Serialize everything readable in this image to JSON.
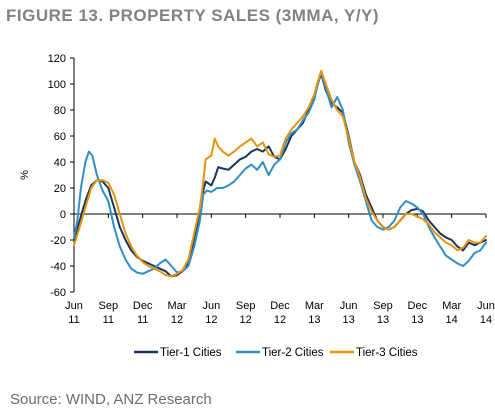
{
  "title": "FIGURE 13. PROPERTY SALES (3MMA, Y/Y)",
  "source": "Source: WIND, ANZ Research",
  "chart_data": {
    "type": "line",
    "ylabel": "%",
    "ylim": [
      -60,
      120
    ],
    "yticks": [
      -60,
      -40,
      -20,
      0,
      20,
      40,
      60,
      80,
      100,
      120
    ],
    "xlim": [
      0,
      36
    ],
    "xticks": [
      {
        "m": 0,
        "top": "Jun",
        "bottom": "11"
      },
      {
        "m": 3,
        "top": "Sep",
        "bottom": "11"
      },
      {
        "m": 6,
        "top": "Dec",
        "bottom": "11"
      },
      {
        "m": 9,
        "top": "Mar",
        "bottom": "12"
      },
      {
        "m": 12,
        "top": "Jun",
        "bottom": "12"
      },
      {
        "m": 15,
        "top": "Sep",
        "bottom": "12"
      },
      {
        "m": 18,
        "top": "Dec",
        "bottom": "12"
      },
      {
        "m": 21,
        "top": "Mar",
        "bottom": "13"
      },
      {
        "m": 24,
        "top": "Jun",
        "bottom": "13"
      },
      {
        "m": 27,
        "top": "Sep",
        "bottom": "13"
      },
      {
        "m": 30,
        "top": "Dec",
        "bottom": "13"
      },
      {
        "m": 33,
        "top": "Mar",
        "bottom": "14"
      },
      {
        "m": 36,
        "top": "Jun",
        "bottom": "14"
      }
    ],
    "legend_position": "bottom",
    "series": [
      {
        "name": "Tier-1 Cities",
        "color": "#17365d",
        "points": [
          [
            0,
            -20
          ],
          [
            0.5,
            -5
          ],
          [
            1,
            10
          ],
          [
            1.5,
            22
          ],
          [
            2,
            26
          ],
          [
            2.5,
            25
          ],
          [
            3,
            20
          ],
          [
            3.5,
            5
          ],
          [
            4,
            -10
          ],
          [
            4.5,
            -20
          ],
          [
            5,
            -28
          ],
          [
            5.5,
            -33
          ],
          [
            6,
            -36
          ],
          [
            6.5,
            -38
          ],
          [
            7,
            -40
          ],
          [
            7.5,
            -42
          ],
          [
            8,
            -44
          ],
          [
            8.5,
            -48
          ],
          [
            9,
            -47
          ],
          [
            9.5,
            -44
          ],
          [
            10,
            -38
          ],
          [
            10.5,
            -20
          ],
          [
            11,
            0
          ],
          [
            11.3,
            18
          ],
          [
            11.5,
            25
          ],
          [
            12,
            22
          ],
          [
            12.3,
            28
          ],
          [
            12.6,
            36
          ],
          [
            13,
            35
          ],
          [
            13.5,
            34
          ],
          [
            14,
            38
          ],
          [
            14.5,
            42
          ],
          [
            15,
            44
          ],
          [
            15.5,
            48
          ],
          [
            16,
            50
          ],
          [
            16.5,
            48
          ],
          [
            17,
            52
          ],
          [
            17.5,
            44
          ],
          [
            18,
            42
          ],
          [
            18.5,
            50
          ],
          [
            19,
            60
          ],
          [
            19.5,
            65
          ],
          [
            20,
            70
          ],
          [
            20.5,
            80
          ],
          [
            21,
            90
          ],
          [
            21.3,
            100
          ],
          [
            21.6,
            108
          ],
          [
            22,
            95
          ],
          [
            22.5,
            85
          ],
          [
            23,
            82
          ],
          [
            23.5,
            78
          ],
          [
            24,
            60
          ],
          [
            24.5,
            40
          ],
          [
            25,
            30
          ],
          [
            25.5,
            15
          ],
          [
            26,
            5
          ],
          [
            26.5,
            -5
          ],
          [
            27,
            -10
          ],
          [
            27.5,
            -12
          ],
          [
            28,
            -10
          ],
          [
            28.5,
            -5
          ],
          [
            29,
            0
          ],
          [
            29.5,
            3
          ],
          [
            30,
            4
          ],
          [
            30.5,
            2
          ],
          [
            31,
            -5
          ],
          [
            31.5,
            -10
          ],
          [
            32,
            -15
          ],
          [
            32.5,
            -18
          ],
          [
            33,
            -20
          ],
          [
            33.5,
            -25
          ],
          [
            34,
            -28
          ],
          [
            34.5,
            -22
          ],
          [
            35,
            -24
          ],
          [
            35.5,
            -22
          ],
          [
            36,
            -20
          ]
        ]
      },
      {
        "name": "Tier-2 Cities",
        "color": "#2e8fc7",
        "points": [
          [
            0,
            -18
          ],
          [
            0.3,
            -5
          ],
          [
            0.6,
            20
          ],
          [
            1,
            40
          ],
          [
            1.3,
            48
          ],
          [
            1.6,
            45
          ],
          [
            2,
            30
          ],
          [
            2.5,
            18
          ],
          [
            3,
            10
          ],
          [
            3.5,
            -10
          ],
          [
            4,
            -25
          ],
          [
            4.5,
            -35
          ],
          [
            5,
            -42
          ],
          [
            5.5,
            -45
          ],
          [
            6,
            -46
          ],
          [
            6.5,
            -44
          ],
          [
            7,
            -42
          ],
          [
            7.5,
            -38
          ],
          [
            8,
            -35
          ],
          [
            8.5,
            -40
          ],
          [
            9,
            -45
          ],
          [
            9.5,
            -44
          ],
          [
            10,
            -40
          ],
          [
            10.5,
            -25
          ],
          [
            11,
            -5
          ],
          [
            11.3,
            15
          ],
          [
            11.6,
            18
          ],
          [
            12,
            17
          ],
          [
            12.5,
            20
          ],
          [
            13,
            20
          ],
          [
            13.5,
            22
          ],
          [
            14,
            25
          ],
          [
            14.5,
            30
          ],
          [
            15,
            35
          ],
          [
            15.5,
            38
          ],
          [
            16,
            34
          ],
          [
            16.5,
            40
          ],
          [
            17,
            30
          ],
          [
            17.5,
            38
          ],
          [
            18,
            42
          ],
          [
            18.5,
            55
          ],
          [
            19,
            62
          ],
          [
            19.5,
            65
          ],
          [
            20,
            72
          ],
          [
            20.5,
            78
          ],
          [
            21,
            88
          ],
          [
            21.3,
            100
          ],
          [
            21.6,
            110
          ],
          [
            22,
            97
          ],
          [
            22.5,
            82
          ],
          [
            23,
            90
          ],
          [
            23.5,
            80
          ],
          [
            24,
            55
          ],
          [
            24.5,
            38
          ],
          [
            25,
            25
          ],
          [
            25.5,
            10
          ],
          [
            26,
            -5
          ],
          [
            26.5,
            -10
          ],
          [
            27,
            -12
          ],
          [
            27.5,
            -10
          ],
          [
            28,
            -5
          ],
          [
            28.5,
            5
          ],
          [
            29,
            10
          ],
          [
            29.5,
            8
          ],
          [
            30,
            5
          ],
          [
            30.5,
            0
          ],
          [
            31,
            -10
          ],
          [
            31.5,
            -18
          ],
          [
            32,
            -25
          ],
          [
            32.5,
            -32
          ],
          [
            33,
            -35
          ],
          [
            33.5,
            -38
          ],
          [
            34,
            -40
          ],
          [
            34.5,
            -36
          ],
          [
            35,
            -30
          ],
          [
            35.5,
            -28
          ],
          [
            36,
            -22
          ]
        ]
      },
      {
        "name": "Tier-3 Cities",
        "color": "#e8930e",
        "points": [
          [
            0,
            -24
          ],
          [
            0.5,
            -10
          ],
          [
            1,
            5
          ],
          [
            1.5,
            20
          ],
          [
            2,
            26
          ],
          [
            2.5,
            26
          ],
          [
            3,
            24
          ],
          [
            3.5,
            15
          ],
          [
            4,
            0
          ],
          [
            4.5,
            -15
          ],
          [
            5,
            -25
          ],
          [
            5.5,
            -32
          ],
          [
            6,
            -37
          ],
          [
            6.5,
            -40
          ],
          [
            7,
            -42
          ],
          [
            7.5,
            -44
          ],
          [
            8,
            -47
          ],
          [
            8.5,
            -48
          ],
          [
            9,
            -46
          ],
          [
            9.5,
            -43
          ],
          [
            10,
            -35
          ],
          [
            10.5,
            -15
          ],
          [
            11,
            5
          ],
          [
            11.3,
            25
          ],
          [
            11.5,
            42
          ],
          [
            12,
            45
          ],
          [
            12.3,
            58
          ],
          [
            12.6,
            52
          ],
          [
            13,
            48
          ],
          [
            13.5,
            45
          ],
          [
            14,
            48
          ],
          [
            14.5,
            52
          ],
          [
            15,
            55
          ],
          [
            15.5,
            58
          ],
          [
            16,
            52
          ],
          [
            16.5,
            55
          ],
          [
            17,
            46
          ],
          [
            17.5,
            44
          ],
          [
            18,
            45
          ],
          [
            18.5,
            58
          ],
          [
            19,
            65
          ],
          [
            19.5,
            70
          ],
          [
            20,
            75
          ],
          [
            20.5,
            82
          ],
          [
            21,
            92
          ],
          [
            21.3,
            102
          ],
          [
            21.6,
            110
          ],
          [
            22,
            100
          ],
          [
            22.5,
            88
          ],
          [
            23,
            80
          ],
          [
            23.5,
            75
          ],
          [
            24,
            58
          ],
          [
            24.5,
            40
          ],
          [
            25,
            28
          ],
          [
            25.5,
            12
          ],
          [
            26,
            2
          ],
          [
            26.5,
            -5
          ],
          [
            27,
            -10
          ],
          [
            27.5,
            -12
          ],
          [
            28,
            -10
          ],
          [
            28.5,
            -5
          ],
          [
            29,
            0
          ],
          [
            29.5,
            0
          ],
          [
            30,
            -2
          ],
          [
            30.5,
            -4
          ],
          [
            31,
            -8
          ],
          [
            31.5,
            -14
          ],
          [
            32,
            -18
          ],
          [
            32.5,
            -22
          ],
          [
            33,
            -24
          ],
          [
            33.5,
            -28
          ],
          [
            34,
            -26
          ],
          [
            34.5,
            -20
          ],
          [
            35,
            -22
          ],
          [
            35.5,
            -22
          ],
          [
            36,
            -17
          ]
        ]
      }
    ]
  }
}
